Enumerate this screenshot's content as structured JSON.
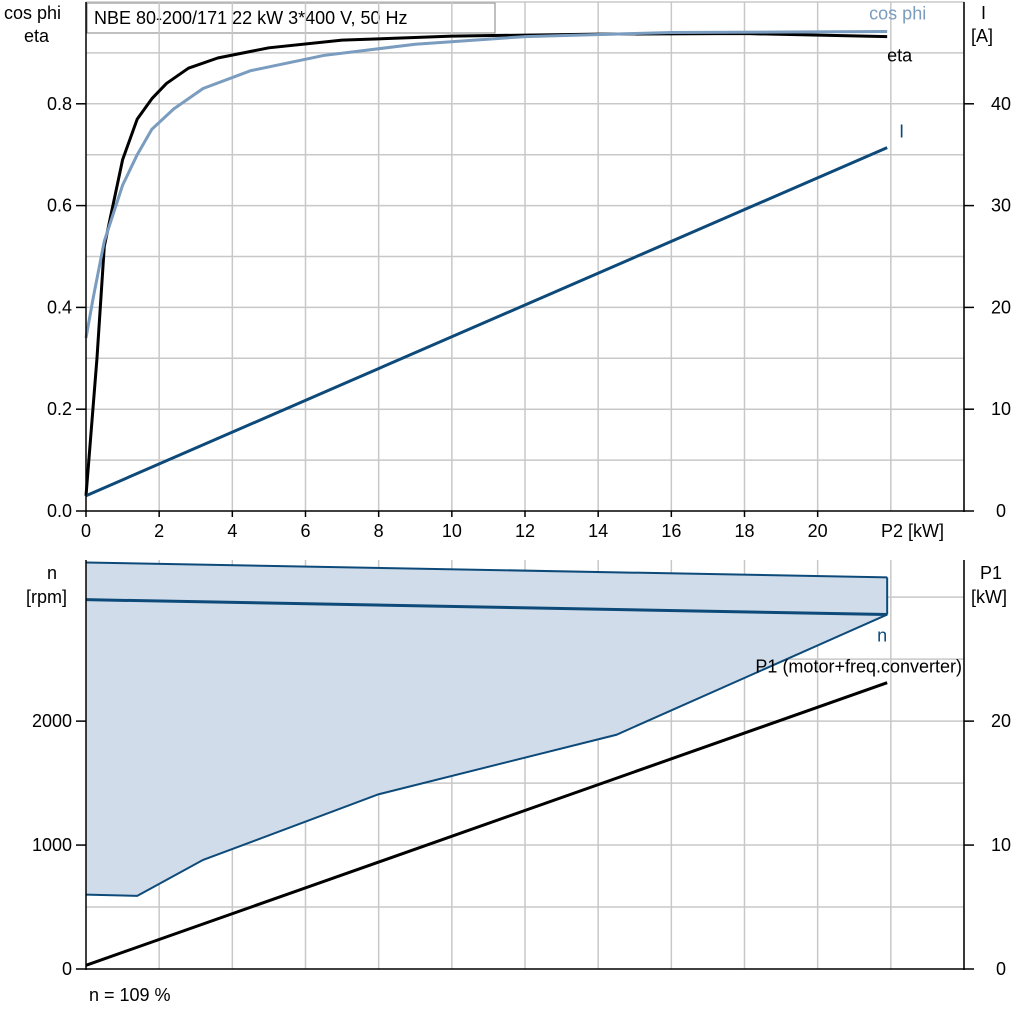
{
  "header": {
    "title": "NBE 80-200/171   22 kW   3*400 V, 50 Hz"
  },
  "footer": {
    "note": "n = 109 %"
  },
  "chart_data": [
    {
      "type": "line",
      "left_axis": {
        "label_line1": "cos phi",
        "label_line2": "eta",
        "ylim": [
          0,
          1.0
        ],
        "ticks": [
          0.0,
          0.2,
          0.4,
          0.6,
          0.8
        ]
      },
      "right_axis": {
        "label_line1": "I",
        "label_line2": "[A]",
        "ylim": [
          0,
          50
        ],
        "ticks": [
          0,
          10,
          20,
          30,
          40
        ]
      },
      "x_axis": {
        "label": "P2 [kW]",
        "xlim": [
          0,
          24
        ],
        "ticks": [
          0,
          2,
          4,
          6,
          8,
          10,
          12,
          14,
          16,
          18,
          20
        ]
      },
      "grid": true,
      "series": [
        {
          "name": "eta",
          "axis": "left",
          "color": "#000000",
          "points": [
            [
              0,
              0.03
            ],
            [
              0.3,
              0.3
            ],
            [
              0.5,
              0.52
            ],
            [
              1.0,
              0.69
            ],
            [
              1.4,
              0.77
            ],
            [
              1.8,
              0.81
            ],
            [
              2.2,
              0.84
            ],
            [
              2.8,
              0.87
            ],
            [
              3.6,
              0.89
            ],
            [
              5,
              0.91
            ],
            [
              7,
              0.925
            ],
            [
              10,
              0.933
            ],
            [
              14,
              0.937
            ],
            [
              18,
              0.938
            ],
            [
              21.9,
              0.932
            ]
          ]
        },
        {
          "name": "cos phi",
          "axis": "left",
          "color": "#7a9cbf",
          "points": [
            [
              0,
              0.34
            ],
            [
              0.2,
              0.42
            ],
            [
              0.5,
              0.53
            ],
            [
              1.0,
              0.64
            ],
            [
              1.4,
              0.7
            ],
            [
              1.8,
              0.75
            ],
            [
              2.4,
              0.79
            ],
            [
              3.2,
              0.83
            ],
            [
              4.5,
              0.865
            ],
            [
              6.5,
              0.895
            ],
            [
              9,
              0.917
            ],
            [
              12,
              0.932
            ],
            [
              16,
              0.94
            ],
            [
              21.9,
              0.942
            ]
          ]
        },
        {
          "name": "I",
          "axis": "right",
          "color": "#0d4a7a",
          "points": [
            [
              0,
              1.5
            ],
            [
              21.9,
              35.7
            ]
          ]
        }
      ]
    },
    {
      "type": "area",
      "left_axis": {
        "label_line1": "n",
        "label_line2": "[rpm]",
        "ylim": [
          0,
          3300
        ],
        "ticks": [
          0,
          1000,
          2000
        ]
      },
      "right_axis": {
        "label_line1": "P1",
        "label_line2": "[kW]",
        "ylim": [
          0,
          33
        ],
        "ticks": [
          0,
          10,
          20
        ]
      },
      "x_axis": {
        "xlim": [
          0,
          24
        ]
      },
      "grid": true,
      "series": [
        {
          "name": "operating range",
          "axis": "left",
          "color": "#0d4a7a",
          "fill": "#d0dce9",
          "upper": [
            [
              0,
              3280
            ],
            [
              21.9,
              3160
            ]
          ],
          "lower": [
            [
              0,
              600
            ],
            [
              1.4,
              590
            ],
            [
              3.2,
              880
            ],
            [
              8,
              1410
            ],
            [
              14.5,
              1890
            ],
            [
              21.9,
              2860
            ]
          ]
        },
        {
          "name": "n",
          "axis": "left",
          "color": "#0d4a7a",
          "points": [
            [
              0,
              2980
            ],
            [
              21.9,
              2860
            ]
          ]
        },
        {
          "name": "P1 (motor+freq.converter)",
          "axis": "right",
          "color": "#000000",
          "points": [
            [
              0,
              0.3
            ],
            [
              21.9,
              23.1
            ]
          ]
        }
      ]
    }
  ]
}
